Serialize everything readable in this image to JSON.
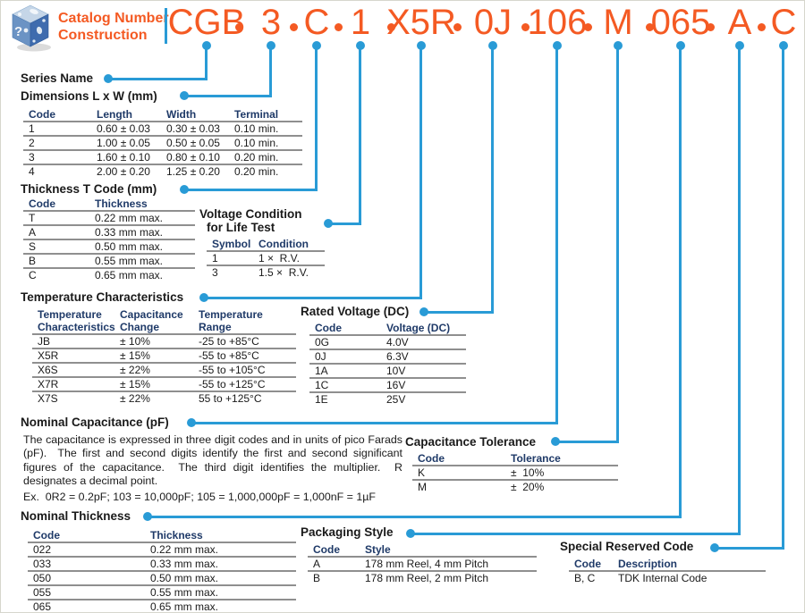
{
  "header": {
    "title_line1": "Catalog Number",
    "title_line2": "Construction",
    "segments": [
      "CGB",
      "3",
      "C",
      "1",
      "X5R",
      "0J",
      "106",
      "M",
      "065",
      "A",
      "C"
    ],
    "separator": "•"
  },
  "colors": {
    "accent_orange": "#f45a23",
    "line_blue": "#299bd6",
    "header_navy": "#1f3a68"
  },
  "sections": {
    "series_name": {
      "title": "Series Name"
    },
    "dimensions": {
      "title": "Dimensions L x W (mm)",
      "headers": [
        "Code",
        "Length",
        "Width",
        "Terminal"
      ],
      "rows": [
        [
          "1",
          "0.60 ± 0.03",
          "0.30 ± 0.03",
          "0.10 min."
        ],
        [
          "2",
          "1.00 ± 0.05",
          "0.50 ± 0.05",
          "0.10 min."
        ],
        [
          "3",
          "1.60 ± 0.10",
          "0.80 ± 0.10",
          "0.20 min."
        ],
        [
          "4",
          "2.00 ± 0.20",
          "1.25 ± 0.20",
          "0.20 min."
        ]
      ]
    },
    "thickness_t": {
      "title": "Thickness T Code (mm)",
      "headers": [
        "Code",
        "Thickness"
      ],
      "rows": [
        [
          "T",
          "0.22 mm max."
        ],
        [
          "A",
          "0.33 mm max."
        ],
        [
          "S",
          "0.50 mm max."
        ],
        [
          "B",
          "0.55 mm max."
        ],
        [
          "C",
          "0.65 mm max."
        ]
      ]
    },
    "voltage_condition": {
      "title_line1": "Voltage Condition",
      "title_line2": "for Life Test",
      "headers": [
        "Symbol",
        "Condition"
      ],
      "rows": [
        [
          "1",
          "1 ×  R.V."
        ],
        [
          "3",
          "1.5 ×  R.V."
        ]
      ]
    },
    "temp_char": {
      "title": "Temperature Characteristics",
      "headers": [
        [
          "Temperature",
          "Characteristics"
        ],
        [
          "Capacitance",
          "Change"
        ],
        [
          "Temperature",
          "Range"
        ]
      ],
      "rows": [
        [
          "JB",
          "± 10%",
          "-25 to +85°C"
        ],
        [
          "X5R",
          "± 15%",
          "-55 to +85°C"
        ],
        [
          "X6S",
          "± 22%",
          "-55 to +105°C"
        ],
        [
          "X7R",
          "± 15%",
          "-55 to +125°C"
        ],
        [
          "X7S",
          "± 22%",
          "55 to +125°C"
        ]
      ]
    },
    "rated_voltage": {
      "title": "Rated Voltage (DC)",
      "headers": [
        "Code",
        "Voltage (DC)"
      ],
      "rows": [
        [
          "0G",
          "4.0V"
        ],
        [
          "0J",
          "6.3V"
        ],
        [
          "1A",
          "10V"
        ],
        [
          "1C",
          "16V"
        ],
        [
          "1E",
          "25V"
        ]
      ]
    },
    "nominal_capacitance": {
      "title": "Nominal Capacitance (pF)",
      "body": "The capacitance is expressed in three digit codes and in units of pico Farads (pF).  The first and second digits identify the first and second significant figures of the capacitance.  The third digit identifies the multiplier.  R designates a decimal point.",
      "example": "Ex.  0R2 = 0.2pF; 103 = 10,000pF; 105 = 1,000,000pF = 1,000nF = 1µF"
    },
    "cap_tolerance": {
      "title": "Capacitance Tolerance",
      "headers": [
        "Code",
        "Tolerance"
      ],
      "rows": [
        [
          "K",
          "±  10%"
        ],
        [
          "M",
          "±  20%"
        ]
      ]
    },
    "nominal_thickness": {
      "title": "Nominal Thickness",
      "headers": [
        "Code",
        "Thickness"
      ],
      "rows": [
        [
          "022",
          "0.22 mm max."
        ],
        [
          "033",
          "0.33 mm max."
        ],
        [
          "050",
          "0.50 mm max."
        ],
        [
          "055",
          "0.55 mm max."
        ],
        [
          "065",
          "0.65 mm max."
        ]
      ]
    },
    "packaging": {
      "title": "Packaging Style",
      "headers": [
        "Code",
        "Style"
      ],
      "rows": [
        [
          "A",
          "178 mm Reel, 4 mm Pitch"
        ],
        [
          "B",
          "178 mm Reel, 2 mm Pitch"
        ]
      ]
    },
    "special_reserved": {
      "title": "Special Reserved Code",
      "headers": [
        "Code",
        "Description"
      ],
      "rows": [
        [
          "B, C",
          "TDK Internal Code"
        ]
      ]
    }
  }
}
